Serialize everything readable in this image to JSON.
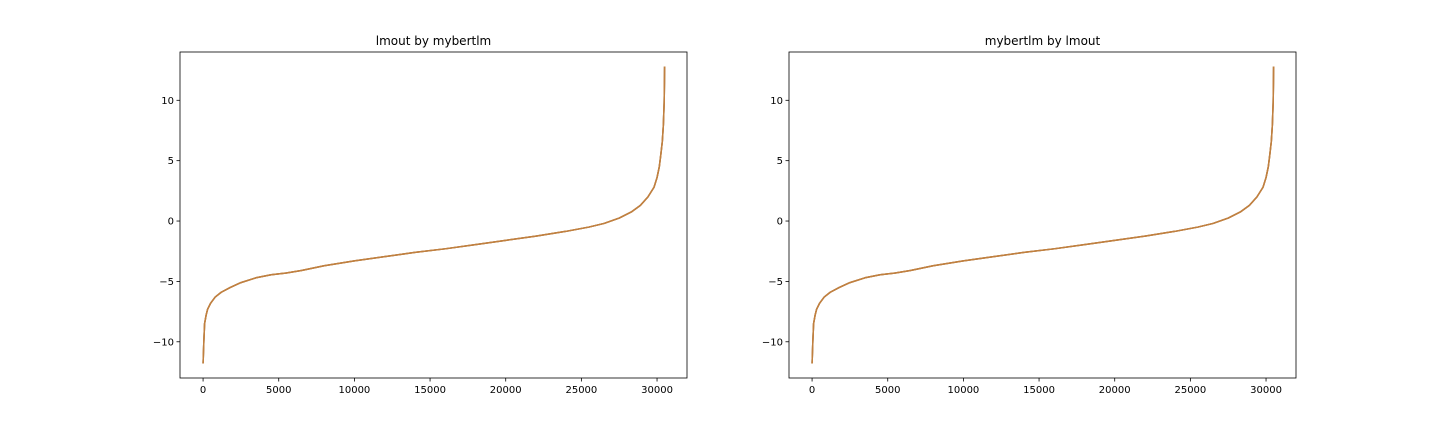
{
  "chart_data": [
    {
      "type": "line",
      "title": "lmout by mybertlm",
      "xlabel": "",
      "ylabel": "",
      "xlim": [
        -1525,
        31980
      ],
      "ylim": [
        -13.0,
        14.0
      ],
      "x_ticks": [
        0,
        5000,
        10000,
        15000,
        20000,
        25000,
        30000
      ],
      "x_tick_labels": [
        "0",
        "5000",
        "10000",
        "15000",
        "20000",
        "25000",
        "30000"
      ],
      "y_ticks": [
        -10,
        -5,
        0,
        5,
        10
      ],
      "y_tick_labels": [
        "−10",
        "−5",
        "0",
        "5",
        "10"
      ],
      "grid": false,
      "series": [
        {
          "color": "#1f77b4",
          "x": [
            0,
            50,
            100,
            200,
            300,
            500,
            800,
            1200,
            1800,
            2500,
            3500,
            4500,
            5500,
            6500,
            8000,
            10000,
            12000,
            14000,
            16000,
            18000,
            20000,
            22000,
            24000,
            25500,
            26500,
            27500,
            28300,
            28900,
            29400,
            29800,
            30000,
            30150,
            30250,
            30350,
            30420,
            30470,
            30490,
            30500
          ],
          "y": [
            -11.8,
            -10.0,
            -8.5,
            -7.8,
            -7.3,
            -6.8,
            -6.3,
            -5.9,
            -5.5,
            -5.1,
            -4.7,
            -4.45,
            -4.3,
            -4.1,
            -3.7,
            -3.3,
            -2.95,
            -2.6,
            -2.3,
            -1.95,
            -1.6,
            -1.25,
            -0.85,
            -0.5,
            -0.2,
            0.25,
            0.75,
            1.3,
            2.0,
            2.8,
            3.6,
            4.5,
            5.5,
            6.6,
            8.0,
            9.8,
            11.5,
            12.8
          ]
        },
        {
          "color": "#ff7f0e",
          "x": [
            0,
            50,
            100,
            200,
            300,
            500,
            800,
            1200,
            1800,
            2500,
            3500,
            4500,
            5500,
            6500,
            8000,
            10000,
            12000,
            14000,
            16000,
            18000,
            20000,
            22000,
            24000,
            25500,
            26500,
            27500,
            28300,
            28900,
            29400,
            29800,
            30000,
            30150,
            30250,
            30350,
            30420,
            30470,
            30490,
            30500
          ],
          "y": [
            -11.8,
            -10.0,
            -8.5,
            -7.8,
            -7.3,
            -6.8,
            -6.3,
            -5.9,
            -5.5,
            -5.1,
            -4.7,
            -4.45,
            -4.3,
            -4.1,
            -3.7,
            -3.3,
            -2.95,
            -2.6,
            -2.3,
            -1.95,
            -1.6,
            -1.25,
            -0.85,
            -0.5,
            -0.2,
            0.25,
            0.75,
            1.3,
            2.0,
            2.8,
            3.6,
            4.5,
            5.5,
            6.6,
            8.0,
            9.8,
            11.5,
            12.8
          ]
        },
        {
          "color": "#c08040",
          "x": [
            0,
            50,
            100,
            200,
            300,
            500,
            800,
            1200,
            1800,
            2500,
            3500,
            4500,
            5500,
            6500,
            8000,
            10000,
            12000,
            14000,
            16000,
            18000,
            20000,
            22000,
            24000,
            25500,
            26500,
            27500,
            28300,
            28900,
            29400,
            29800,
            30000,
            30150,
            30250,
            30350,
            30420,
            30470,
            30490,
            30500
          ],
          "y": [
            -11.8,
            -10.0,
            -8.5,
            -7.8,
            -7.3,
            -6.8,
            -6.3,
            -5.9,
            -5.5,
            -5.1,
            -4.7,
            -4.45,
            -4.3,
            -4.1,
            -3.7,
            -3.3,
            -2.95,
            -2.6,
            -2.3,
            -1.95,
            -1.6,
            -1.25,
            -0.85,
            -0.5,
            -0.2,
            0.25,
            0.75,
            1.3,
            2.0,
            2.8,
            3.6,
            4.5,
            5.5,
            6.6,
            8.0,
            9.8,
            11.5,
            12.8
          ]
        }
      ]
    },
    {
      "type": "line",
      "title": "mybertlm by lmout",
      "xlabel": "",
      "ylabel": "",
      "xlim": [
        -1525,
        31980
      ],
      "ylim": [
        -13.0,
        14.0
      ],
      "x_ticks": [
        0,
        5000,
        10000,
        15000,
        20000,
        25000,
        30000
      ],
      "x_tick_labels": [
        "0",
        "5000",
        "10000",
        "15000",
        "20000",
        "25000",
        "30000"
      ],
      "y_ticks": [
        -10,
        -5,
        0,
        5,
        10
      ],
      "y_tick_labels": [
        "−10",
        "−5",
        "0",
        "5",
        "10"
      ],
      "grid": false,
      "series": [
        {
          "color": "#1f77b4",
          "x": [
            0,
            50,
            100,
            200,
            300,
            500,
            800,
            1200,
            1800,
            2500,
            3500,
            4500,
            5500,
            6500,
            8000,
            10000,
            12000,
            14000,
            16000,
            18000,
            20000,
            22000,
            24000,
            25500,
            26500,
            27500,
            28300,
            28900,
            29400,
            29800,
            30000,
            30150,
            30250,
            30350,
            30420,
            30470,
            30490,
            30500
          ],
          "y": [
            -11.8,
            -10.0,
            -8.5,
            -7.8,
            -7.3,
            -6.8,
            -6.3,
            -5.9,
            -5.5,
            -5.1,
            -4.7,
            -4.45,
            -4.3,
            -4.1,
            -3.7,
            -3.3,
            -2.95,
            -2.6,
            -2.3,
            -1.95,
            -1.6,
            -1.25,
            -0.85,
            -0.5,
            -0.2,
            0.25,
            0.75,
            1.3,
            2.0,
            2.8,
            3.6,
            4.5,
            5.5,
            6.6,
            8.0,
            9.8,
            11.5,
            12.8
          ]
        },
        {
          "color": "#ff7f0e",
          "x": [
            0,
            50,
            100,
            200,
            300,
            500,
            800,
            1200,
            1800,
            2500,
            3500,
            4500,
            5500,
            6500,
            8000,
            10000,
            12000,
            14000,
            16000,
            18000,
            20000,
            22000,
            24000,
            25500,
            26500,
            27500,
            28300,
            28900,
            29400,
            29800,
            30000,
            30150,
            30250,
            30350,
            30420,
            30470,
            30490,
            30500
          ],
          "y": [
            -11.8,
            -10.0,
            -8.5,
            -7.8,
            -7.3,
            -6.8,
            -6.3,
            -5.9,
            -5.5,
            -5.1,
            -4.7,
            -4.45,
            -4.3,
            -4.1,
            -3.7,
            -3.3,
            -2.95,
            -2.6,
            -2.3,
            -1.95,
            -1.6,
            -1.25,
            -0.85,
            -0.5,
            -0.2,
            0.25,
            0.75,
            1.3,
            2.0,
            2.8,
            3.6,
            4.5,
            5.5,
            6.6,
            8.0,
            9.8,
            11.5,
            12.8
          ]
        },
        {
          "color": "#c08040",
          "x": [
            0,
            50,
            100,
            200,
            300,
            500,
            800,
            1200,
            1800,
            2500,
            3500,
            4500,
            5500,
            6500,
            8000,
            10000,
            12000,
            14000,
            16000,
            18000,
            20000,
            22000,
            24000,
            25500,
            26500,
            27500,
            28300,
            28900,
            29400,
            29800,
            30000,
            30150,
            30250,
            30350,
            30420,
            30470,
            30490,
            30500
          ],
          "y": [
            -11.8,
            -10.0,
            -8.5,
            -7.8,
            -7.3,
            -6.8,
            -6.3,
            -5.9,
            -5.5,
            -5.1,
            -4.7,
            -4.45,
            -4.3,
            -4.1,
            -3.7,
            -3.3,
            -2.95,
            -2.6,
            -2.3,
            -1.95,
            -1.6,
            -1.25,
            -0.85,
            -0.5,
            -0.2,
            0.25,
            0.75,
            1.3,
            2.0,
            2.8,
            3.6,
            4.5,
            5.5,
            6.6,
            8.0,
            9.8,
            11.5,
            12.8
          ]
        }
      ]
    }
  ]
}
